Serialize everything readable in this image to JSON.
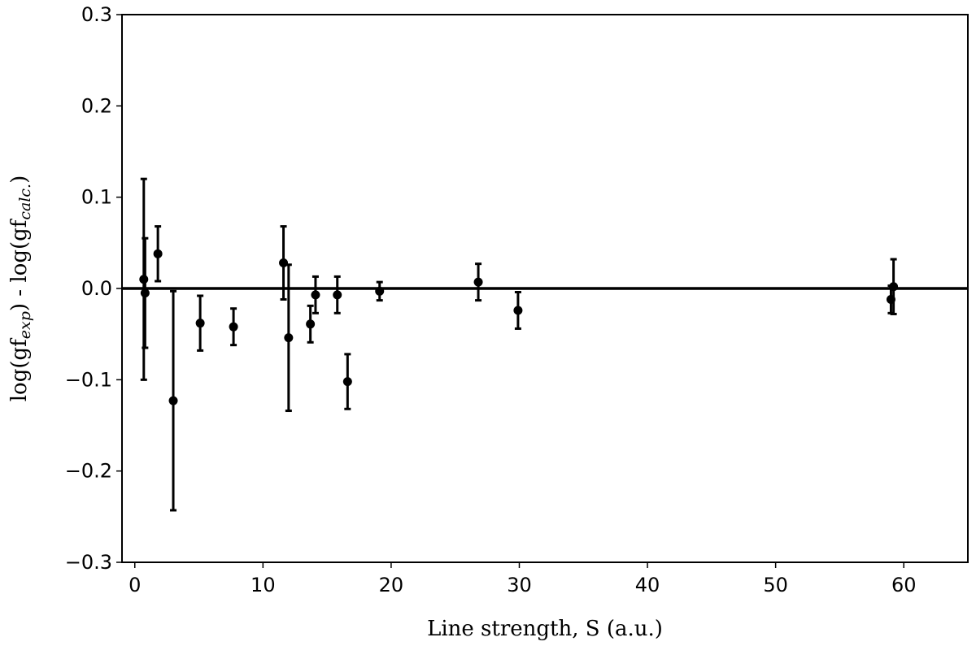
{
  "chart_data": {
    "type": "scatter",
    "xlabel": "Line strength, S (a.u.)",
    "ylabel": {
      "p1": "log(gf",
      "sub1": "exp",
      "p2": ") - log(gf",
      "sub2": "calc.",
      "p3": ")"
    },
    "xlim": [
      -1,
      65
    ],
    "ylim": [
      -0.3,
      0.3
    ],
    "x_ticks": [
      0,
      10,
      20,
      30,
      40,
      50,
      60
    ],
    "x_tick_labels": [
      "0",
      "10",
      "20",
      "30",
      "40",
      "50",
      "60"
    ],
    "y_ticks": [
      -0.3,
      -0.2,
      -0.1,
      0.0,
      0.1,
      0.2,
      0.3
    ],
    "y_tick_labels": [
      "−0.3",
      "−0.2",
      "−0.1",
      "0.0",
      "0.1",
      "0.2",
      "0.3"
    ],
    "reference_line_y": 0.0,
    "grid": false,
    "legend": "none",
    "points": [
      {
        "x": 0.7,
        "y": 0.01,
        "err": 0.11
      },
      {
        "x": 0.8,
        "y": -0.005,
        "err": 0.06
      },
      {
        "x": 1.8,
        "y": 0.038,
        "err": 0.03
      },
      {
        "x": 3.0,
        "y": -0.123,
        "err": 0.12
      },
      {
        "x": 5.1,
        "y": -0.038,
        "err": 0.03
      },
      {
        "x": 7.7,
        "y": -0.042,
        "err": 0.02
      },
      {
        "x": 11.6,
        "y": 0.028,
        "err": 0.04
      },
      {
        "x": 12.0,
        "y": -0.054,
        "err": 0.08
      },
      {
        "x": 13.7,
        "y": -0.039,
        "err": 0.02
      },
      {
        "x": 14.1,
        "y": -0.007,
        "err": 0.02
      },
      {
        "x": 15.8,
        "y": -0.007,
        "err": 0.02
      },
      {
        "x": 16.6,
        "y": -0.102,
        "err": 0.03
      },
      {
        "x": 19.1,
        "y": -0.003,
        "err": 0.01
      },
      {
        "x": 26.8,
        "y": 0.007,
        "err": 0.02
      },
      {
        "x": 29.9,
        "y": -0.024,
        "err": 0.02
      },
      {
        "x": 59.0,
        "y": -0.012,
        "err": 0.015
      },
      {
        "x": 59.2,
        "y": 0.002,
        "err": 0.03
      }
    ]
  }
}
